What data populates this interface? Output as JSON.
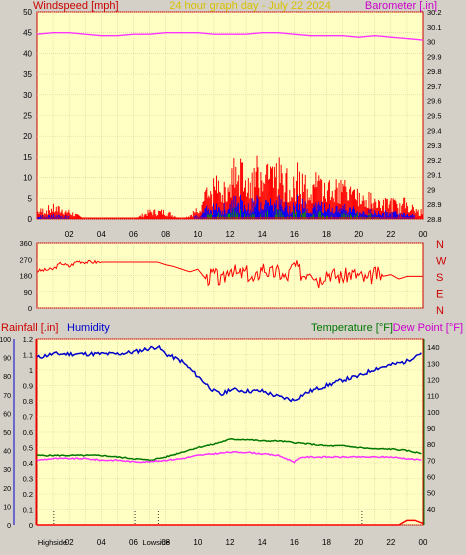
{
  "colors": {
    "background": "#d4d0c8",
    "plot": "#ffffc4",
    "grid": "#d8d0a0",
    "wind": "#ff0000",
    "gust_mid": "#0000ff",
    "gust_low": "#009900",
    "barometer": "#ff33ff",
    "direction": "#ff0000",
    "humidity": "#0000cc",
    "temperature": "#007700",
    "dewpoint": "#ff33ff",
    "rainfall": "#ff0000"
  },
  "chart_data": [
    {
      "type": "line",
      "title": "24 hour graph day - July 22 2024",
      "ylabel_left": "Windspeed [mph]",
      "ylabel_right": "Barometer [.in]",
      "ylim_left": [
        0,
        50
      ],
      "yticks_left": [
        "0",
        "5",
        "10",
        "15",
        "20",
        "25",
        "30",
        "35",
        "40",
        "45",
        "50"
      ],
      "ylim_right": [
        28.8,
        30.2
      ],
      "yticks_right": [
        "28.8",
        "28.9",
        "29",
        "29.1",
        "29.2",
        "29.3",
        "29.4",
        "29.5",
        "29.6",
        "29.7",
        "29.8",
        "29.9",
        "30",
        "30.1",
        "30.2"
      ],
      "xticks": [
        "02",
        "04",
        "06",
        "08",
        "10",
        "12",
        "14",
        "16",
        "18",
        "20",
        "22",
        "00"
      ],
      "series": [
        {
          "name": "Windspeed",
          "axis": "left",
          "color": "#ff0000",
          "x": [
            0,
            1,
            2,
            3,
            4,
            5,
            6,
            7,
            8,
            9,
            9.5,
            10,
            10.5,
            11,
            11.5,
            12,
            12.5,
            13,
            13.5,
            14,
            14.5,
            15,
            15.5,
            16,
            16.5,
            17,
            17.5,
            18,
            18.5,
            19,
            19.5,
            20,
            20.5,
            21,
            21.5,
            22,
            22.5,
            23,
            23.5,
            24
          ],
          "values": [
            2,
            3,
            2,
            0,
            0,
            0,
            0,
            2,
            2,
            0,
            1,
            3,
            6,
            8,
            10,
            12,
            13,
            11,
            12,
            14,
            12,
            13,
            11,
            12,
            10,
            9,
            10,
            9,
            8,
            8,
            7,
            6,
            5,
            6,
            4,
            5,
            3,
            5,
            2,
            2
          ]
        },
        {
          "name": "Barometer",
          "axis": "right",
          "color": "#ff33ff",
          "x": [
            0,
            1,
            2,
            3,
            4,
            5,
            6,
            7,
            8,
            9,
            10,
            11,
            12,
            13,
            14,
            15,
            16,
            17,
            18,
            19,
            20,
            21,
            22,
            23,
            24
          ],
          "values": [
            30.05,
            30.06,
            30.06,
            30.05,
            30.04,
            30.04,
            30.05,
            30.05,
            30.06,
            30.06,
            30.06,
            30.05,
            30.05,
            30.05,
            30.06,
            30.06,
            30.05,
            30.04,
            30.04,
            30.04,
            30.03,
            30.04,
            30.03,
            30.02,
            30.01
          ]
        }
      ]
    },
    {
      "type": "line",
      "ylim": [
        0,
        360
      ],
      "yticks": [
        "0",
        "90",
        "180",
        "270",
        "360"
      ],
      "direction_labels": [
        "N",
        "W",
        "S",
        "E",
        "N"
      ],
      "series": [
        {
          "name": "Wind direction",
          "color": "#ff0000",
          "x": [
            0,
            0.5,
            1,
            1.5,
            2,
            2.5,
            3,
            3.5,
            4,
            4.5,
            5,
            5.5,
            6,
            6.5,
            7,
            7.5,
            8,
            8.5,
            9,
            9.5,
            10,
            10.5,
            11,
            11.5,
            12,
            12.5,
            13,
            13.5,
            14,
            14.5,
            15,
            15.5,
            16,
            16.5,
            17,
            17.5,
            18,
            18.5,
            19,
            19.5,
            20,
            20.5,
            21,
            21.5,
            22,
            22.5,
            23,
            23.5,
            24
          ],
          "values": [
            205,
            210,
            215,
            250,
            230,
            260,
            255,
            255,
            255,
            255,
            255,
            255,
            255,
            255,
            255,
            255,
            240,
            230,
            215,
            200,
            215,
            160,
            190,
            140,
            230,
            180,
            200,
            140,
            230,
            190,
            200,
            160,
            240,
            180,
            220,
            150,
            200,
            180,
            170,
            190,
            180,
            150,
            190,
            175,
            185,
            160,
            175,
            175,
            175
          ]
        }
      ]
    },
    {
      "type": "line",
      "ylabel_left_1": "Rainfall [.in]",
      "ylabel_left_2": "Humidity",
      "ylabel_right": "Temperature [°F]",
      "ylabel_right_2": "Dew Point [°F]",
      "ylim_rain": [
        0,
        1.2
      ],
      "yticks_rain": [
        "0",
        "0.1",
        "0.2",
        "0.3",
        "0.4",
        "0.5",
        "0.6",
        "0.7",
        "0.8",
        "0.9",
        "1",
        "1.1",
        "1.2"
      ],
      "ylim_humidity": [
        0,
        100
      ],
      "yticks_humidity": [
        "0",
        "10",
        "20",
        "30",
        "40",
        "50",
        "60",
        "70",
        "80",
        "90",
        "100"
      ],
      "ylim_temp": [
        30,
        145
      ],
      "yticks_temp": [
        "40",
        "50",
        "60",
        "70",
        "80",
        "90",
        "100",
        "110",
        "120",
        "130",
        "140"
      ],
      "xticks": [
        "02",
        "04",
        "06",
        "08",
        "10",
        "12",
        "14",
        "16",
        "18",
        "20",
        "22",
        "00"
      ],
      "annotations": [
        {
          "text": "Highside",
          "x": 0.8
        },
        {
          "text": "Lowside",
          "x": 7.3
        }
      ],
      "series": [
        {
          "name": "Humidity",
          "axis": "humidity",
          "color": "#0000cc",
          "x": [
            0,
            1,
            2,
            3,
            4,
            5,
            6,
            7,
            7.5,
            8,
            9,
            10,
            11,
            11.5,
            12,
            13,
            14,
            15,
            15.5,
            16,
            16.5,
            17,
            18,
            19,
            20,
            21,
            22,
            23,
            23.5,
            24
          ],
          "values": [
            90,
            92,
            92,
            92,
            92,
            92,
            93,
            95,
            96,
            92,
            88,
            80,
            72,
            70,
            73,
            72,
            72,
            69,
            68,
            67,
            70,
            72,
            75,
            78,
            80,
            84,
            86,
            88,
            91,
            93
          ]
        },
        {
          "name": "Temperature",
          "axis": "temp",
          "color": "#007700",
          "x": [
            0,
            1,
            2,
            3,
            4,
            5,
            6,
            7,
            8,
            9,
            10,
            11,
            12,
            13,
            14,
            15,
            16,
            17,
            18,
            19,
            20,
            21,
            22,
            23,
            24
          ],
          "values": [
            73,
            73,
            73,
            73,
            73,
            72,
            71,
            70,
            72,
            75,
            78,
            80,
            83,
            83,
            82,
            82,
            81,
            80,
            79,
            79,
            78,
            77,
            77,
            76,
            74
          ]
        },
        {
          "name": "Dew Point",
          "axis": "temp",
          "color": "#ff33ff",
          "x": [
            0,
            1,
            2,
            3,
            4,
            5,
            6,
            7,
            8,
            9,
            10,
            11,
            12,
            13,
            14,
            15,
            15.5,
            16,
            16.5,
            17,
            18,
            19,
            20,
            21,
            22,
            23,
            24
          ],
          "values": [
            70,
            71,
            71,
            71,
            70,
            70,
            69,
            69,
            70,
            71,
            73,
            74,
            75,
            75,
            74,
            73,
            71,
            69,
            72,
            72,
            72,
            72,
            72,
            72,
            72,
            71,
            70
          ]
        },
        {
          "name": "Rainfall",
          "axis": "rain",
          "color": "#ff0000",
          "x": [
            0,
            22.5,
            23,
            23.5,
            24
          ],
          "values": [
            0,
            0,
            0.03,
            0.03,
            0.01
          ]
        }
      ]
    }
  ]
}
